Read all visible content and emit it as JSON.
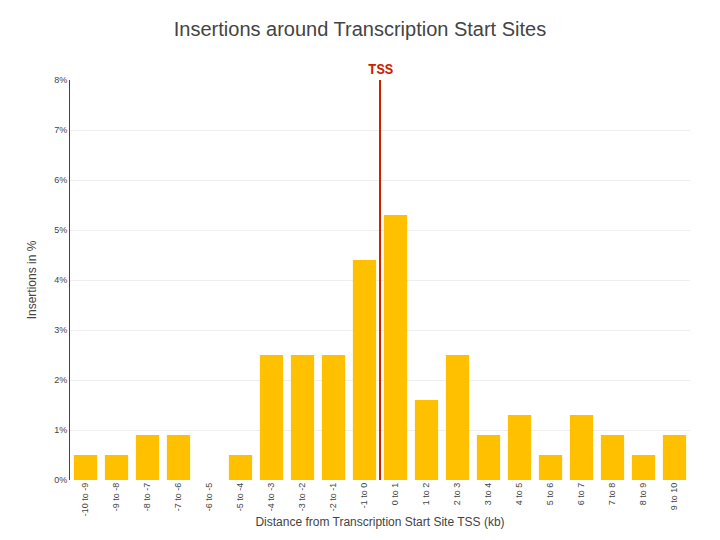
{
  "chart_data": {
    "type": "bar",
    "title": "Insertions around Transcription Start Sites",
    "xlabel": "Distance from Transcription Start Site TSS (kb)",
    "ylabel": "Insertions in %",
    "categories": [
      "-10 to -9",
      "-9 to -8",
      "-8 to -7",
      "-7 to -6",
      "-6 to -5",
      "-5 to -4",
      "-4 to -3",
      "-3 to -2",
      "-2 to -1",
      "-1 to 0",
      "0 to 1",
      "1 to 2",
      "2 to 3",
      "3 to 4",
      "4 to 5",
      "5 to 6",
      "6 to 7",
      "7 to 8",
      "8 to 9",
      "9 to 10"
    ],
    "values": [
      0.5,
      0.5,
      0.9,
      0.9,
      0.0,
      0.5,
      2.5,
      2.5,
      2.5,
      4.4,
      5.3,
      1.6,
      2.5,
      0.9,
      1.3,
      0.5,
      1.3,
      0.9,
      0.5,
      0.9
    ],
    "color": "#FFC000",
    "ylim": [
      0,
      8
    ],
    "yticks": [
      {
        "value": 0,
        "label": "0%"
      },
      {
        "value": 1,
        "label": "1%"
      },
      {
        "value": 2,
        "label": "2%"
      },
      {
        "value": 3,
        "label": "3%"
      },
      {
        "value": 4,
        "label": "4%"
      },
      {
        "value": 5,
        "label": "5%"
      },
      {
        "value": 6,
        "label": "6%"
      },
      {
        "value": 7,
        "label": "7%"
      },
      {
        "value": 8,
        "label": "8%"
      }
    ],
    "grid": true,
    "annotations": [
      {
        "text": "TSS",
        "between": [
          "-1 to 0",
          "0 to 1"
        ],
        "color": "#CC2200"
      }
    ]
  }
}
